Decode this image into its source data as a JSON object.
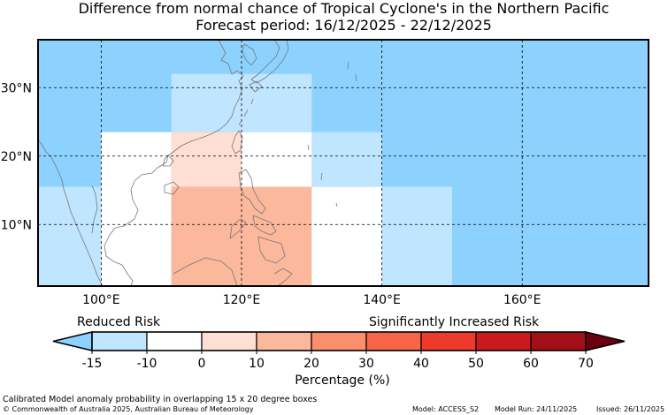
{
  "title": {
    "line1": "Difference from normal chance of Tropical Cyclone's in the Northern Pacific",
    "line2": "Forecast period: 16/12/2025 - 22/12/2025"
  },
  "map": {
    "lon_range": [
      91,
      178
    ],
    "lat_range": [
      1,
      37
    ],
    "ocean_color": "#8dd2ff",
    "x_ticks": [
      {
        "value": 100,
        "label": "100°E"
      },
      {
        "value": 120,
        "label": "120°E"
      },
      {
        "value": 140,
        "label": "140°E"
      },
      {
        "value": 160,
        "label": "160°E"
      }
    ],
    "y_ticks": [
      {
        "value": 10,
        "label": "10°N"
      },
      {
        "value": 20,
        "label": "20°N"
      },
      {
        "value": 30,
        "label": "30°N"
      }
    ],
    "cells": [
      {
        "lon": [
          91,
          100
        ],
        "lat": [
          1,
          15.5
        ],
        "color": "#bfe5ff"
      },
      {
        "lon": [
          100,
          110
        ],
        "lat": [
          1,
          23.5
        ],
        "color": "#ffffff"
      },
      {
        "lon": [
          110,
          120
        ],
        "lat": [
          15.5,
          23.5
        ],
        "color": "#ffdfd3"
      },
      {
        "lon": [
          120,
          130
        ],
        "lat": [
          15.5,
          23.5
        ],
        "color": "#ffffff"
      },
      {
        "lon": [
          110,
          130
        ],
        "lat": [
          1,
          15.5
        ],
        "color": "#fbb89d"
      },
      {
        "lon": [
          110,
          130
        ],
        "lat": [
          23.5,
          32
        ],
        "color": "#bfe5ff"
      },
      {
        "lon": [
          130,
          140
        ],
        "lat": [
          15.5,
          23.5
        ],
        "color": "#bfe5ff"
      },
      {
        "lon": [
          130,
          140
        ],
        "lat": [
          1,
          15.5
        ],
        "color": "#ffffff"
      },
      {
        "lon": [
          140,
          150
        ],
        "lat": [
          1,
          15.5
        ],
        "color": "#bfe5ff"
      }
    ]
  },
  "legend": {
    "reduced_label": "Reduced Risk",
    "increased_label": "Significantly Increased Risk",
    "xlabel": "Percentage (%)",
    "under_color": "#8dd2ff",
    "over_color": "#6a0010",
    "bins": [
      {
        "from": -15,
        "to": -10,
        "color": "#bfe5ff"
      },
      {
        "from": -10,
        "to": 0,
        "color": "#ffffff"
      },
      {
        "from": 0,
        "to": 10,
        "color": "#ffdfd3"
      },
      {
        "from": 10,
        "to": 20,
        "color": "#fbb89d"
      },
      {
        "from": 20,
        "to": 30,
        "color": "#fb8e6d"
      },
      {
        "from": 30,
        "to": 40,
        "color": "#f86448"
      },
      {
        "from": 40,
        "to": 50,
        "color": "#ee3a2c"
      },
      {
        "from": 50,
        "to": 60,
        "color": "#cb1a1e"
      },
      {
        "from": 60,
        "to": 70,
        "color": "#a30f16"
      }
    ],
    "ticks": [
      "-15",
      "-10",
      "0",
      "10",
      "20",
      "30",
      "40",
      "50",
      "60",
      "70"
    ]
  },
  "footer": {
    "line1": "Calibrated Model anomaly probability in overlapping 15 x 20 degree boxes",
    "line2": "© Commonwealth of Australia 2025, Australian Bureau of Meteorology",
    "model": "Model: ACCESS_S2",
    "model_run": "Model Run: 24/11/2025",
    "issued": "Issued: 26/11/2025"
  }
}
